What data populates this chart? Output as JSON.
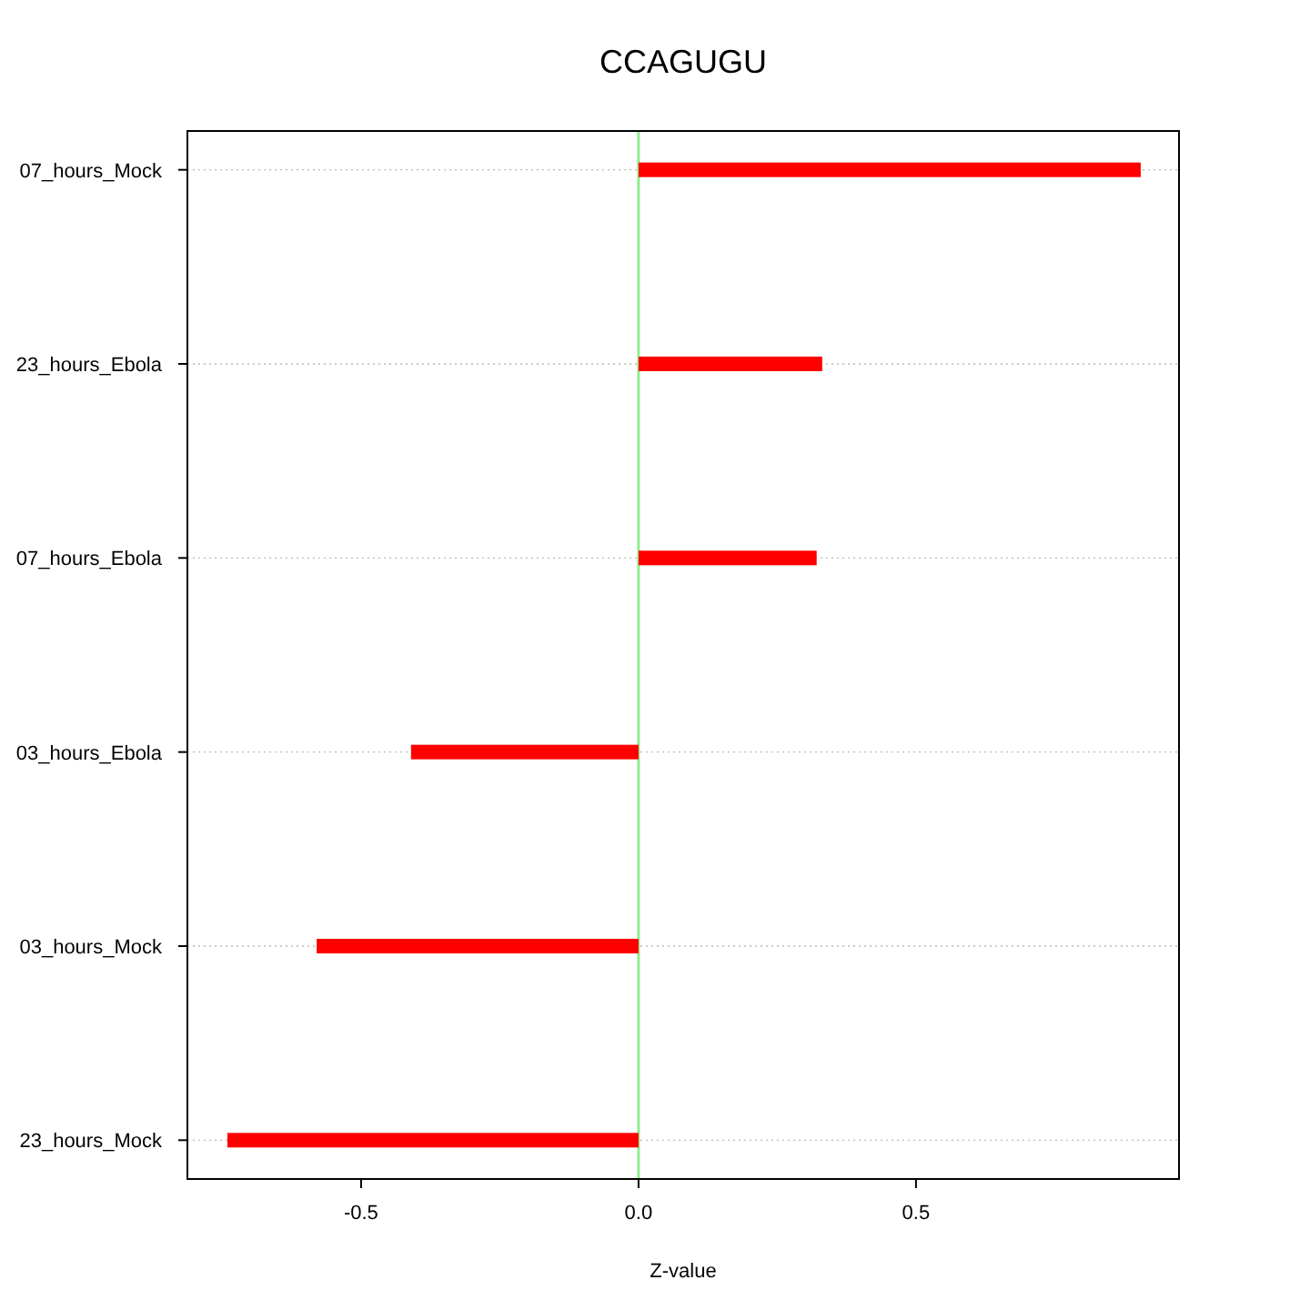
{
  "chart_data": {
    "type": "bar",
    "orientation": "horizontal",
    "title": "CCAGUGU",
    "xlabel": "Z-value",
    "categories": [
      "07_hours_Mock",
      "23_hours_Ebola",
      "07_hours_Ebola",
      "03_hours_Ebola",
      "03_hours_Mock",
      "23_hours_Mock"
    ],
    "values": [
      0.905,
      0.331,
      0.321,
      -0.41,
      -0.58,
      -0.741
    ],
    "color": "#ff0000",
    "xlim": [
      -0.813,
      0.974
    ],
    "xticks": [
      -0.5,
      {
        "value": 0,
        "label": "0.0"
      },
      0.5
    ],
    "grid": "y",
    "ref_lines": [
      {
        "axis": "x",
        "value": 0,
        "color": "#90ee90"
      }
    ]
  }
}
